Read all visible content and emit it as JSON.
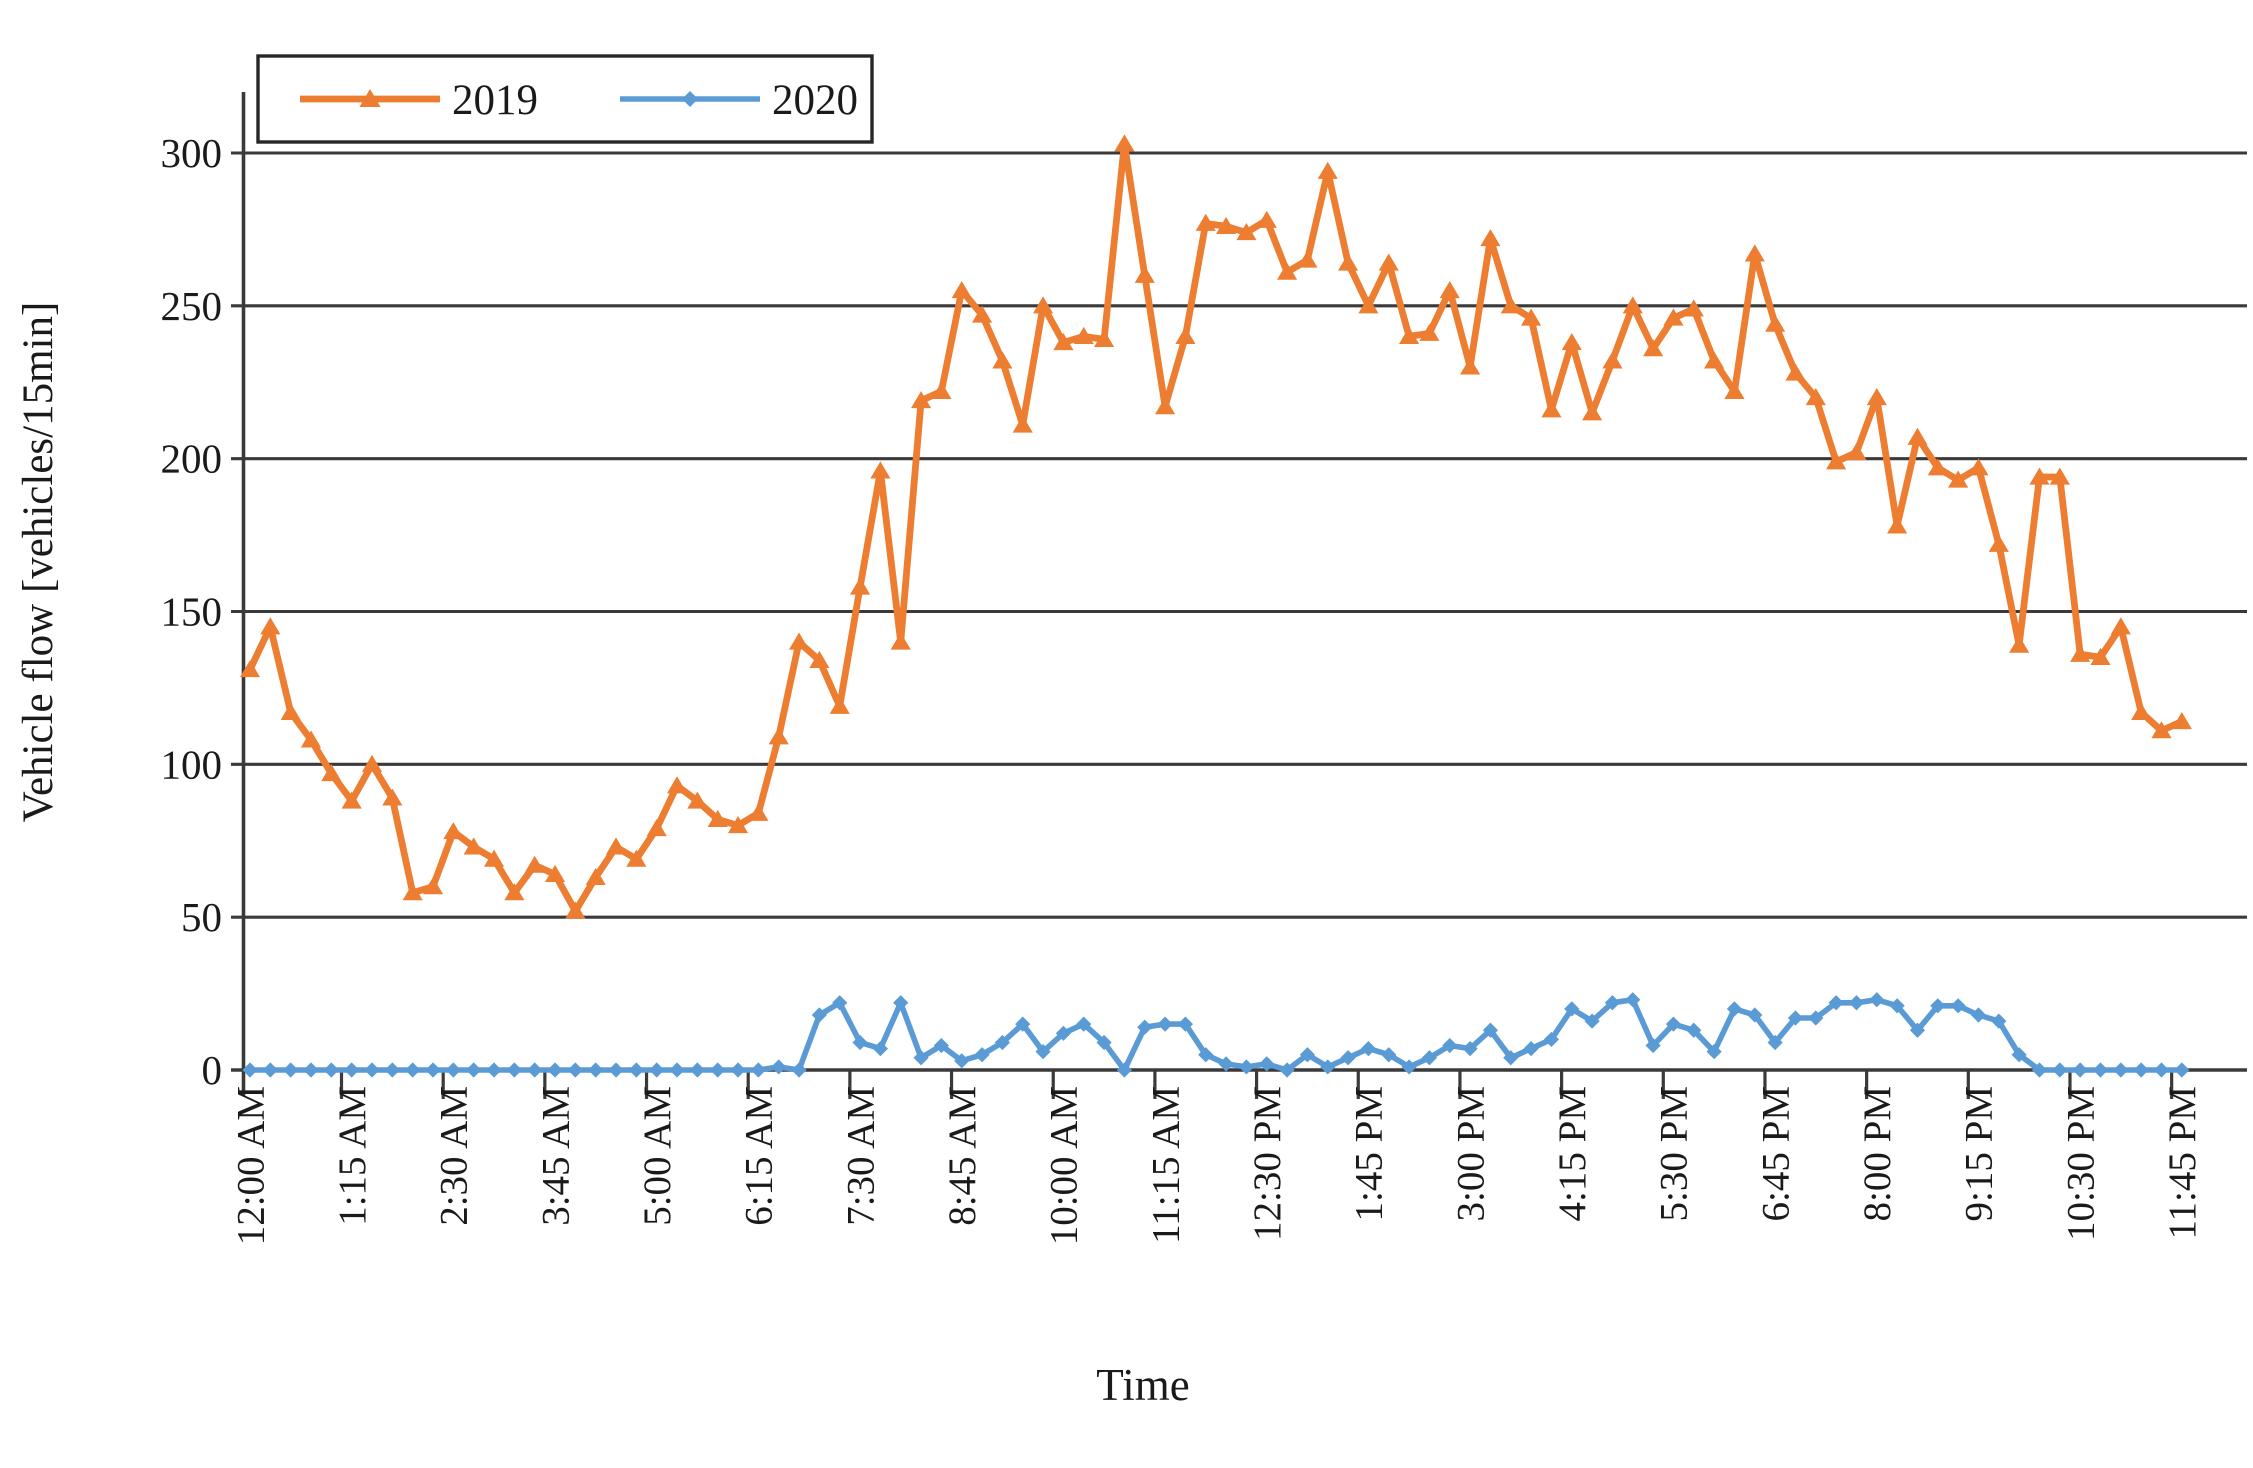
{
  "chart_data": {
    "type": "line",
    "title": "",
    "xlabel": "Time",
    "ylabel": "Vehicle flow [vehicles/15min]",
    "ylim": [
      0,
      300
    ],
    "yticks": [
      0,
      50,
      100,
      150,
      200,
      250,
      300
    ],
    "grid": true,
    "legend_position": "top-left",
    "n_points": 96,
    "x_interval_minutes": 15,
    "x_tick_label_step": 5,
    "x_tick_labels": [
      "12:00 AM",
      "1:15 AM",
      "2:30 AM",
      "3:45 AM",
      "5:00 AM",
      "6:15 AM",
      "7:30 AM",
      "8:45 AM",
      "10:00 AM",
      "11:15 AM",
      "12:30 PM",
      "1:45 PM",
      "3:00 PM",
      "4:15 PM",
      "5:30 PM",
      "6:45 PM",
      "8:00 PM",
      "9:15 PM",
      "10:30 PM",
      "11:45 PM"
    ],
    "series": [
      {
        "name": "2019",
        "color": "#ED7D31",
        "marker": "triangle",
        "values": [
          131,
          145,
          117,
          108,
          97,
          88,
          100,
          89,
          58,
          60,
          78,
          73,
          69,
          58,
          67,
          64,
          52,
          63,
          73,
          69,
          79,
          93,
          88,
          82,
          80,
          84,
          109,
          140,
          134,
          119,
          158,
          196,
          140,
          219,
          222,
          255,
          247,
          232,
          211,
          250,
          238,
          240,
          239,
          303,
          260,
          217,
          240,
          277,
          276,
          274,
          278,
          261,
          265,
          294,
          264,
          250,
          264,
          240,
          241,
          255,
          230,
          272,
          250,
          246,
          216,
          238,
          215,
          232,
          250,
          236,
          246,
          249,
          232,
          222,
          267,
          244,
          228,
          220,
          199,
          202,
          220,
          178,
          207,
          197,
          193,
          197,
          172,
          139,
          194,
          194,
          136,
          135,
          145,
          117,
          111,
          114
        ]
      },
      {
        "name": "2020",
        "color": "#5B9BD5",
        "marker": "diamond",
        "values": [
          0,
          0,
          0,
          0,
          0,
          0,
          0,
          0,
          0,
          0,
          0,
          0,
          0,
          0,
          0,
          0,
          0,
          0,
          0,
          0,
          0,
          0,
          0,
          0,
          0,
          0,
          1,
          0,
          18,
          22,
          9,
          7,
          22,
          4,
          8,
          3,
          5,
          9,
          15,
          6,
          12,
          15,
          9,
          0,
          14,
          15,
          15,
          5,
          2,
          1,
          2,
          0,
          5,
          1,
          4,
          7,
          5,
          1,
          4,
          8,
          7,
          13,
          4,
          7,
          10,
          20,
          16,
          22,
          23,
          8,
          15,
          13,
          6,
          20,
          18,
          9,
          17,
          17,
          22,
          22,
          23,
          21,
          13,
          21,
          21,
          18,
          16,
          5,
          0,
          0,
          0,
          0,
          0,
          0,
          0,
          0
        ]
      }
    ]
  },
  "legend": {
    "items": [
      {
        "label": "2019",
        "color": "#ED7D31",
        "marker": "triangle"
      },
      {
        "label": "2020",
        "color": "#5B9BD5",
        "marker": "diamond"
      }
    ]
  },
  "colors": {
    "series_2019": "#ED7D31",
    "series_2020": "#5B9BD5",
    "gridline": "#3a3a3a",
    "axis": "#3a3a3a",
    "text": "#1a1a1a",
    "legend_border": "#262626",
    "background": "#ffffff"
  }
}
